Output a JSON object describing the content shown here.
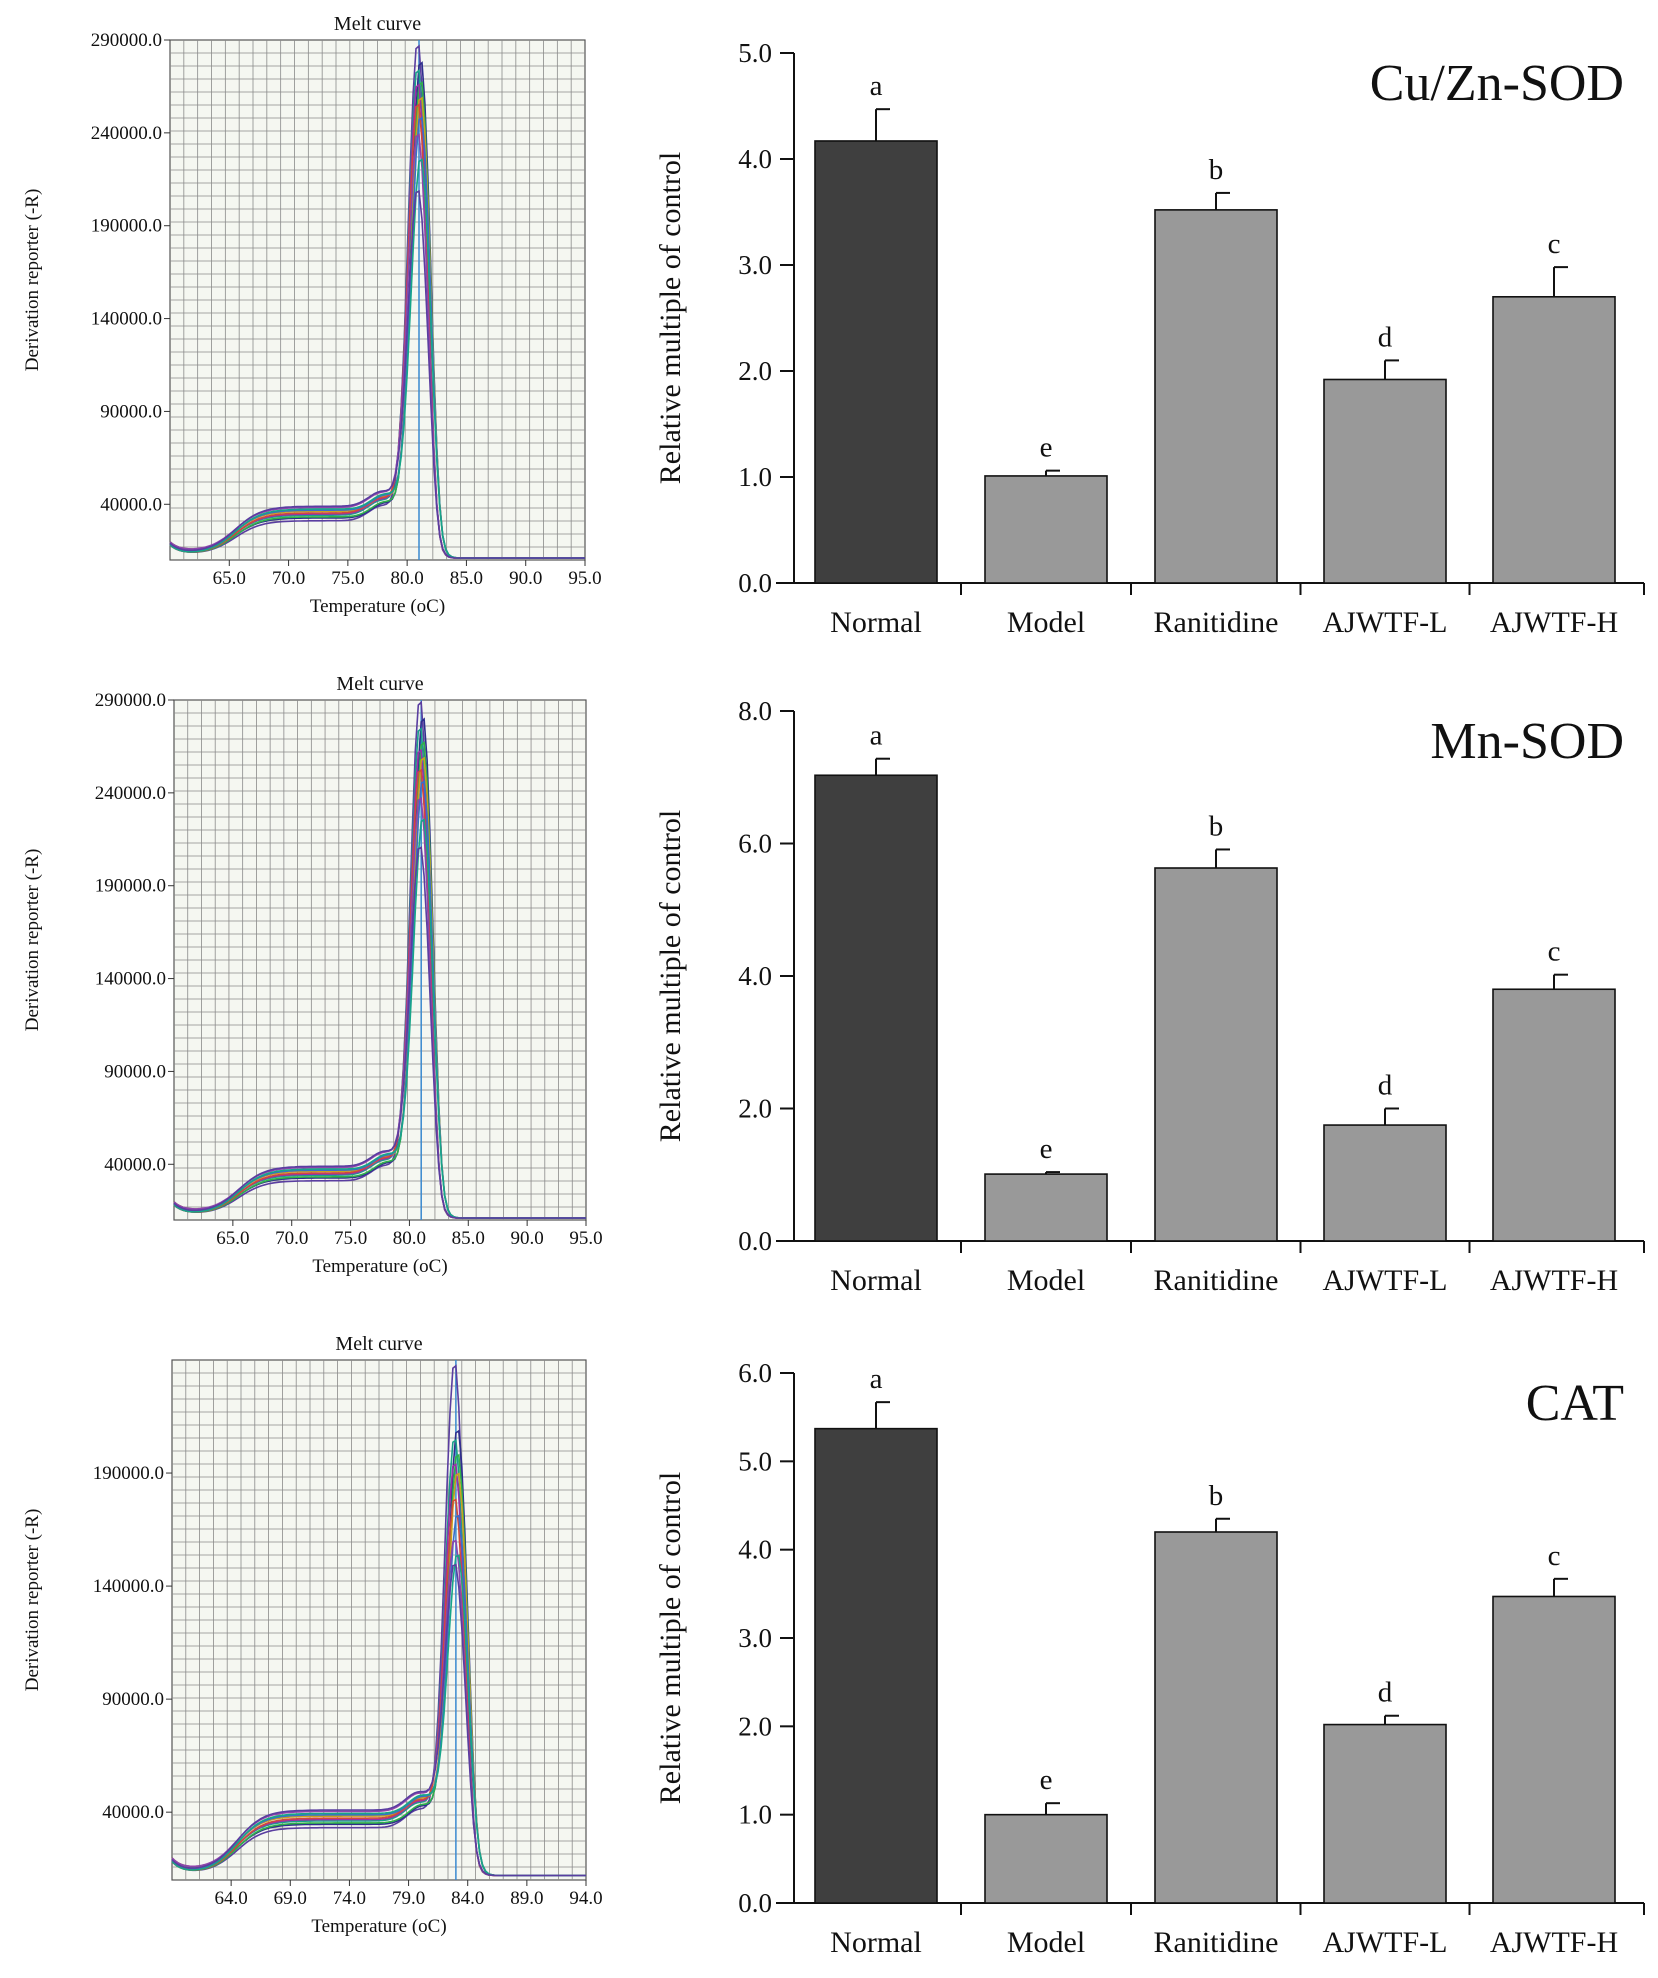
{
  "colors": {
    "normal_bar": "#3f3f3f",
    "other_bar": "#999999",
    "grid": "#8a8a8a",
    "melt_bg": "#f5f7f1",
    "curves": [
      "#5a3ea0",
      "#2e2e8c",
      "#1aa08a",
      "#2fb04a",
      "#9a2fa8",
      "#c8a020",
      "#d04a3a",
      "#3a6ec8",
      "#8e44ad",
      "#17a589"
    ]
  },
  "chart_data": [
    {
      "type": "line",
      "title": "Melt curve",
      "xlabel": "Temperature",
      "xlabel_unit": "(oC)",
      "ylabel": "Derivation reporter (-R)",
      "xticks": [
        "65.0",
        "70.0",
        "75.0",
        "80.0",
        "85.0",
        "90.0",
        "95.0"
      ],
      "yticks": [
        "40000.0",
        "90000.0",
        "140000.0",
        "190000.0",
        "240000.0",
        "290000.0"
      ],
      "xlim": [
        60,
        95
      ],
      "ylim": [
        10000,
        290000
      ],
      "peak_temperature": 81.0,
      "peak_heights": [
        290000,
        280000,
        275000,
        270000,
        268000,
        260000,
        258000,
        250000,
        240000,
        228000,
        210000
      ],
      "plateau_level": 35000,
      "baseline_level": 11000
    },
    {
      "type": "bar",
      "gene": "Cu/Zn-SOD",
      "ylabel": "Relative multiple of control",
      "categories": [
        "Normal",
        "Model",
        "Ranitidine",
        "AJWTF-L",
        "AJWTF-H"
      ],
      "values": [
        4.17,
        1.01,
        3.52,
        1.92,
        2.7
      ],
      "errors": [
        0.3,
        0.05,
        0.16,
        0.18,
        0.28
      ],
      "letters": [
        "a",
        "e",
        "b",
        "d",
        "c"
      ],
      "ylim": [
        0,
        5
      ],
      "yticks": [
        "0.0",
        "1.0",
        "2.0",
        "3.0",
        "4.0",
        "5.0"
      ]
    },
    {
      "type": "line",
      "title": "Melt curve",
      "xlabel": "Temperature",
      "xlabel_unit": "(oC)",
      "ylabel": "Derivation reporter (-R)",
      "xticks": [
        "65.0",
        "70.0",
        "75.0",
        "80.0",
        "85.0",
        "90.0",
        "95.0"
      ],
      "yticks": [
        "40000.0",
        "90000.0",
        "140000.0",
        "190000.0",
        "240000.0",
        "290000.0"
      ],
      "xlim": [
        60,
        95
      ],
      "ylim": [
        10000,
        290000
      ],
      "peak_temperature": 81.0,
      "peak_heights": [
        292000,
        282000,
        276000,
        270000,
        265000,
        260000,
        255000,
        248000,
        238000,
        228000,
        212000
      ],
      "plateau_level": 35000,
      "baseline_level": 11000
    },
    {
      "type": "bar",
      "gene": "Mn-SOD",
      "ylabel": "Relative multiple of control",
      "categories": [
        "Normal",
        "Model",
        "Ranitidine",
        "AJWTF-L",
        "AJWTF-H"
      ],
      "values": [
        7.03,
        1.01,
        5.63,
        1.75,
        3.8
      ],
      "errors": [
        0.25,
        0.03,
        0.28,
        0.25,
        0.22
      ],
      "letters": [
        "a",
        "e",
        "b",
        "d",
        "c"
      ],
      "ylim": [
        0,
        8
      ],
      "yticks": [
        "0.0",
        "2.0",
        "4.0",
        "6.0",
        "8.0"
      ]
    },
    {
      "type": "line",
      "title": "Melt curve",
      "xlabel": "Temperature",
      "xlabel_unit": "(oC)",
      "ylabel": "Derivation reporter (-R)",
      "xticks": [
        "64.0",
        "69.0",
        "74.0",
        "79.0",
        "84.0",
        "89.0",
        "94.0"
      ],
      "yticks": [
        "40000.0",
        "90000.0",
        "140000.0",
        "190000.0"
      ],
      "xlim": [
        59,
        94
      ],
      "ylim": [
        10000,
        240000
      ],
      "peak_temperature": 83.0,
      "peak_heights": [
        240000,
        210000,
        205000,
        200000,
        195000,
        190000,
        180000,
        172000,
        160000,
        155000,
        150000
      ],
      "plateau_level": 37000,
      "baseline_level": 12000
    },
    {
      "type": "bar",
      "gene": "CAT",
      "ylabel": "Relative multiple of control",
      "categories": [
        "Normal",
        "Model",
        "Ranitidine",
        "AJWTF-L",
        "AJWTF-H"
      ],
      "values": [
        5.37,
        1.0,
        4.2,
        2.02,
        3.47
      ],
      "errors": [
        0.3,
        0.13,
        0.15,
        0.1,
        0.2
      ],
      "letters": [
        "a",
        "e",
        "b",
        "d",
        "c"
      ],
      "ylim": [
        0,
        6
      ],
      "yticks": [
        "0.0",
        "1.0",
        "2.0",
        "3.0",
        "4.0",
        "5.0",
        "6.0"
      ]
    }
  ]
}
